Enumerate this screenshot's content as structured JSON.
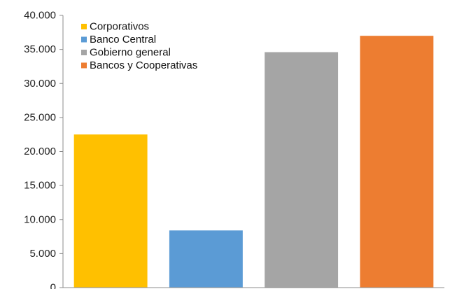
{
  "chart_data": {
    "type": "bar",
    "categories": [
      "Corporativos",
      "Banco Central",
      "Gobierno general",
      "Bancos y Cooperativas"
    ],
    "values": [
      22500,
      8400,
      34600,
      37000
    ],
    "colors": [
      "#FFC000",
      "#5B9BD5",
      "#A5A5A5",
      "#ED7D31"
    ],
    "ylim": [
      0,
      40000
    ],
    "yticks": [
      0,
      5000,
      10000,
      15000,
      20000,
      25000,
      30000,
      35000,
      40000
    ],
    "ytick_labels": [
      "0",
      "5.000",
      "10.000",
      "15.000",
      "20.000",
      "25.000",
      "30.000",
      "35.000",
      "40.000"
    ],
    "grid": false,
    "legend_position": "top-left",
    "legend": [
      {
        "label": "Corporativos",
        "color": "#FFC000"
      },
      {
        "label": "Banco Central",
        "color": "#5B9BD5"
      },
      {
        "label": "Gobierno general",
        "color": "#A5A5A5"
      },
      {
        "label": "Bancos y Cooperativas",
        "color": "#ED7D31"
      }
    ]
  }
}
